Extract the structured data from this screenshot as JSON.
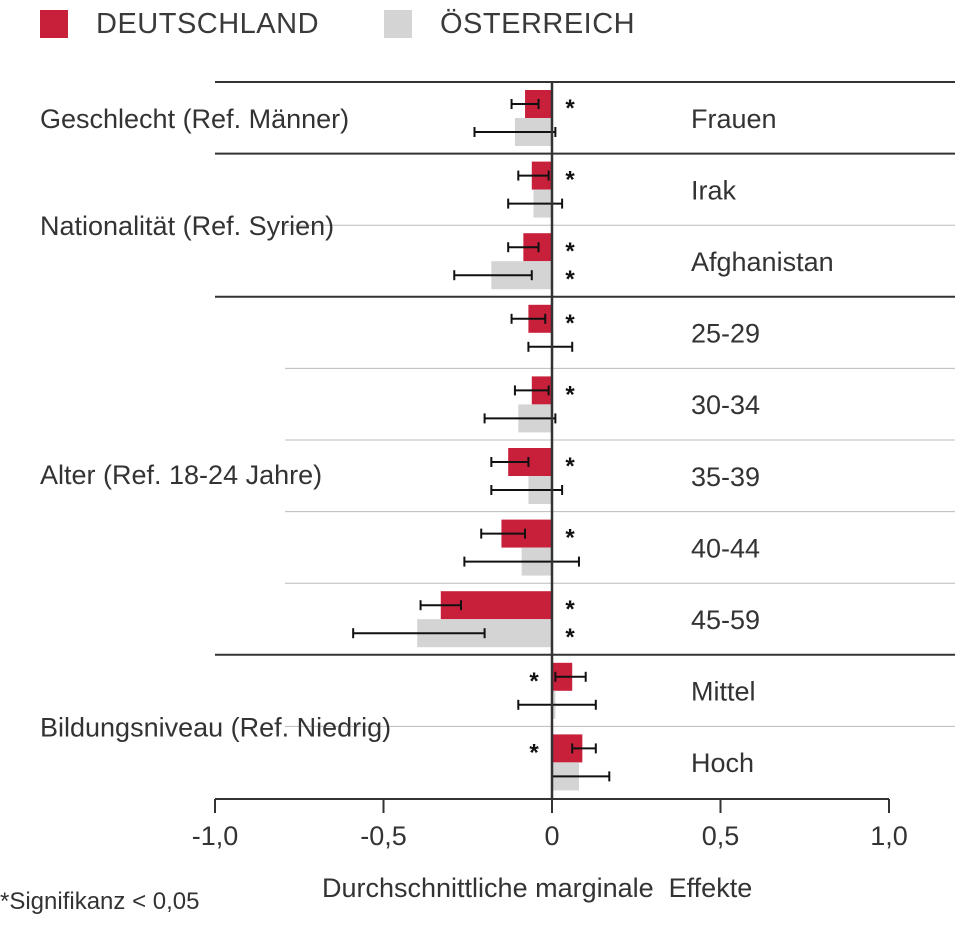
{
  "legend": {
    "series_a": "DEUTSCHLAND",
    "series_b": "ÖSTERREICH"
  },
  "footnote": "*Signifikanz < 0,05",
  "colors": {
    "deutschland": "#c8203a",
    "oesterreich": "#d4d4d4",
    "axis": "#333333",
    "grid": "#bbbbbb"
  },
  "chart_data": {
    "type": "bar",
    "orientation": "horizontal",
    "xlabel": "Durchschnittliche marginale  Effekte",
    "xlim": [
      -1.0,
      1.0
    ],
    "xticks": [
      -1.0,
      -0.5,
      0,
      0.5,
      1.0
    ],
    "xtick_labels": [
      "-1,0",
      "-0,5",
      "0",
      "0,5",
      "1,0"
    ],
    "groups": [
      {
        "label": "Geschlecht (Ref. Männer)",
        "categories": [
          "Frauen"
        ]
      },
      {
        "label": "Nationalität (Ref. Syrien)",
        "categories": [
          "Irak",
          "Afghanistan"
        ]
      },
      {
        "label": "Alter (Ref. 18-24 Jahre)",
        "categories": [
          "25-29",
          "30-34",
          "35-39",
          "40-44",
          "45-59"
        ]
      },
      {
        "label": "Bildungsniveau (Ref. Niedrig)",
        "categories": [
          "Mittel",
          "Hoch"
        ]
      }
    ],
    "categories": [
      "Frauen",
      "Irak",
      "Afghanistan",
      "25-29",
      "30-34",
      "35-39",
      "40-44",
      "45-59",
      "Mittel",
      "Hoch"
    ],
    "series": [
      {
        "name": "DEUTSCHLAND",
        "values": [
          -0.08,
          -0.06,
          -0.085,
          -0.07,
          -0.06,
          -0.13,
          -0.15,
          -0.33,
          0.06,
          0.09
        ],
        "ci_low": [
          -0.12,
          -0.1,
          -0.13,
          -0.12,
          -0.11,
          -0.18,
          -0.21,
          -0.39,
          0.01,
          0.06
        ],
        "ci_high": [
          -0.04,
          -0.01,
          -0.04,
          -0.02,
          -0.01,
          -0.07,
          -0.08,
          -0.27,
          0.1,
          0.13
        ],
        "significant": [
          true,
          true,
          true,
          true,
          true,
          true,
          true,
          true,
          true,
          true
        ]
      },
      {
        "name": "ÖSTERREICH",
        "values": [
          -0.11,
          -0.055,
          -0.18,
          0.0,
          -0.1,
          -0.07,
          -0.09,
          -0.4,
          0.01,
          0.08
        ],
        "ci_low": [
          -0.23,
          -0.13,
          -0.29,
          -0.07,
          -0.2,
          -0.18,
          -0.26,
          -0.59,
          -0.1,
          0.0
        ],
        "ci_high": [
          0.01,
          0.03,
          -0.06,
          0.06,
          0.01,
          0.03,
          0.08,
          -0.2,
          0.13,
          0.17
        ],
        "significant": [
          false,
          false,
          true,
          false,
          false,
          false,
          false,
          true,
          false,
          false
        ]
      }
    ]
  }
}
